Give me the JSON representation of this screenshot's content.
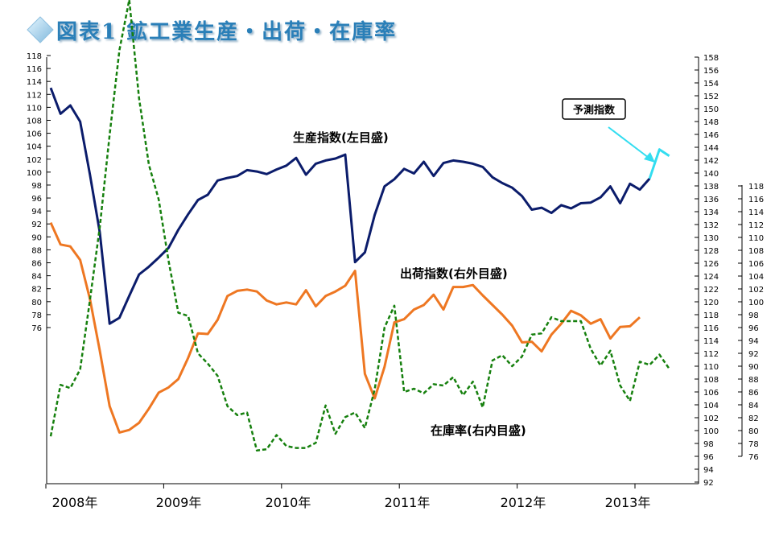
{
  "title": "図表1 鉱工業生産・出荷・在庫率",
  "chart_data": {
    "type": "line",
    "months": 67,
    "x_tick_labels": [
      "2008年",
      "2009年",
      "2010年",
      "2011年",
      "2012年",
      "2013年"
    ],
    "left_axis": {
      "ticks": [
        76,
        78,
        80,
        82,
        84,
        86,
        88,
        90,
        92,
        94,
        96,
        98,
        100,
        102,
        104,
        106,
        108,
        110,
        112,
        114,
        116,
        118
      ]
    },
    "right_outer_axis": {
      "ticks": [
        92,
        94,
        96,
        98,
        100,
        102,
        104,
        106,
        108,
        110,
        112,
        114,
        116,
        118,
        120,
        122,
        124,
        126,
        128,
        130,
        132,
        134,
        136,
        138,
        140,
        142,
        144,
        146,
        148,
        150,
        152,
        154,
        156,
        158
      ]
    },
    "right_inner_axis": {
      "ticks": [
        76,
        78,
        80,
        82,
        84,
        86,
        88,
        90,
        92,
        94,
        96,
        98,
        100,
        102,
        104,
        106,
        108,
        110,
        112,
        114,
        116,
        118
      ]
    },
    "series": [
      {
        "name": "生産指数(左目盛)",
        "color": "#0b1c6b",
        "dash": false,
        "values": [
          113,
          109,
          110.3,
          107.8,
          99.6,
          90.7,
          76.6,
          77.5,
          80.9,
          84.2,
          85.4,
          86.8,
          88.3,
          91.1,
          93.5,
          95.7,
          96.5,
          98.7,
          99.1,
          99.4,
          100.3,
          100.1,
          99.7,
          100.4,
          101,
          102.2,
          99.6,
          101.3,
          101.8,
          102.1,
          102.7,
          86.1,
          87.6,
          93.4,
          97.8,
          98.9,
          100.5,
          99.8,
          101.6,
          99.4,
          101.4,
          101.8,
          101.6,
          101.3,
          100.8,
          99.2,
          98.3,
          97.6,
          96.3,
          94.2,
          94.5,
          93.7,
          94.9,
          94.4,
          95.2,
          95.3,
          96.1,
          97.8,
          95.2,
          98.2,
          97.3,
          99
        ]
      },
      {
        "name": "予測指数",
        "color": "#33ddf0",
        "dash": false,
        "start_month": 61,
        "values": [
          99,
          103.5,
          102.5
        ]
      },
      {
        "name": "出荷指数(右外目盛)",
        "color": "#ee7722",
        "dash": false,
        "values": [
          132.3,
          128.9,
          128.6,
          126.5,
          120.4,
          112.4,
          103.8,
          99.7,
          100.1,
          101.2,
          103.4,
          105.9,
          106.7,
          108,
          111.3,
          115.1,
          115,
          117.2,
          120.9,
          121.7,
          121.9,
          121.6,
          120.2,
          119.6,
          119.9,
          119.6,
          121.8,
          119.3,
          120.9,
          121.6,
          122.5,
          124.8,
          108.8,
          105,
          109.9,
          116.8,
          117.3,
          118.8,
          119.5,
          121.1,
          118.8,
          122.3,
          122.3,
          122.6,
          121,
          119.5,
          118,
          116.3,
          113.7,
          113.8,
          112.3,
          114.9,
          116.6,
          118.6,
          117.9,
          116.6,
          117.3,
          114.3,
          116.1,
          116.2,
          117.6
        ]
      },
      {
        "name": "在庫率(右内目盛)",
        "color": "#16800e",
        "dash": true,
        "values": [
          79.1,
          87.1,
          86.6,
          89.5,
          100.3,
          111.6,
          125.9,
          139.1,
          146.9,
          131.6,
          121.3,
          115.9,
          106.4,
          98.3,
          97.8,
          92,
          90.4,
          88.5,
          83.8,
          82.4,
          82.8,
          76.9,
          77.1,
          79.3,
          77.6,
          77.3,
          77.3,
          78.1,
          83.9,
          79.5,
          82.1,
          82.8,
          80.4,
          86.4,
          96,
          99.4,
          86,
          86.5,
          85.8,
          87.2,
          87,
          88.3,
          85.5,
          87.6,
          83.6,
          90.9,
          91.7,
          90,
          91.5,
          94.9,
          95.1,
          97.6,
          97,
          97,
          97,
          92.7,
          90.1,
          92.4,
          87,
          84.6,
          90.7,
          90.2,
          91.8,
          89.6
        ]
      }
    ],
    "annotations": [
      {
        "text": "生産指数(左目盛)"
      },
      {
        "text": "出荷指数(右外目盛)"
      },
      {
        "text": "在庫率(右内目盛)"
      },
      {
        "text": "予測指数"
      }
    ]
  }
}
